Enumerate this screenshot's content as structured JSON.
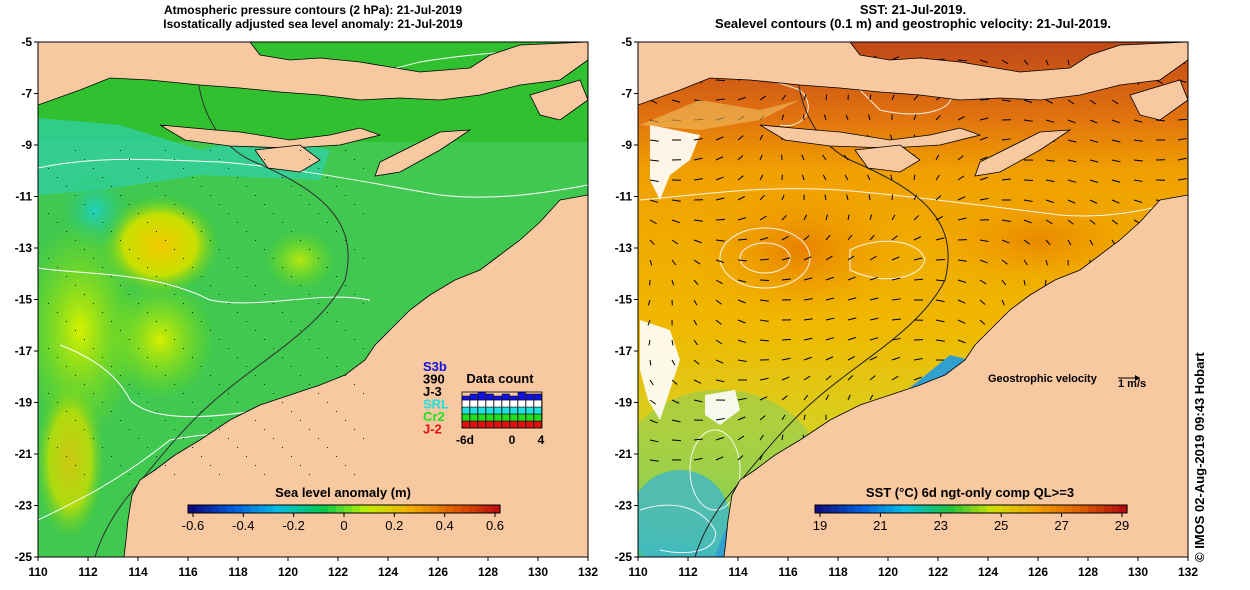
{
  "left_panel": {
    "title_line1": "Atmospheric pressure contours (2 hPa): 21-Jul-2019",
    "title_line2": "Isostatically adjusted sea level anomaly: 21-Jul-2019",
    "x_ticks": [
      "110",
      "112",
      "114",
      "116",
      "118",
      "120",
      "122",
      "124",
      "126",
      "128",
      "130",
      "132"
    ],
    "y_ticks": [
      "-5",
      "-7",
      "-9",
      "-11",
      "-13",
      "-15",
      "-17",
      "-19",
      "-21",
      "-23",
      "-25"
    ],
    "colorbar": {
      "label": "Sea level anomaly (m)",
      "ticks": [
        "-0.6",
        "-0.4",
        "-0.2",
        "0",
        "0.2",
        "0.4",
        "0.6"
      ],
      "colors": [
        "#0a0a80",
        "#0060e0",
        "#00c0e0",
        "#00c850",
        "#c0f000",
        "#f0b000",
        "#e06000",
        "#c01010"
      ]
    },
    "satellites": [
      {
        "name": "S3b",
        "color": "#1010e0"
      },
      {
        "name": "390",
        "color": "#000000"
      },
      {
        "name": "J-3",
        "color": "#000000"
      },
      {
        "name": "SRL",
        "color": "#20e0e0"
      },
      {
        "name": "Cr2",
        "color": "#20e020"
      },
      {
        "name": "J-2",
        "color": "#e01010"
      }
    ],
    "data_count": {
      "title": "Data count",
      "ticks": [
        "-6d",
        "0",
        "4"
      ]
    }
  },
  "right_panel": {
    "title_line1": "SST: 21-Jul-2019.",
    "title_line2": "Sealevel contours (0.1 m) and geostrophic velocity: 21-Jul-2019.",
    "x_ticks": [
      "110",
      "112",
      "114",
      "116",
      "118",
      "120",
      "122",
      "124",
      "126",
      "128",
      "130",
      "132"
    ],
    "y_ticks": [
      "-5",
      "-7",
      "-9",
      "-11",
      "-13",
      "-15",
      "-17",
      "-19",
      "-21",
      "-23",
      "-25"
    ],
    "colorbar": {
      "label": "SST (°C) 6d ngt-only comp QL>=3",
      "ticks": [
        "19",
        "21",
        "23",
        "25",
        "27",
        "29"
      ],
      "colors": [
        "#101080",
        "#0060e0",
        "#00c0e0",
        "#20c040",
        "#d0e000",
        "#f0a000",
        "#e06000",
        "#b01010"
      ]
    },
    "velocity_label": "Geostrophic velocity",
    "velocity_scale": "1 m/s"
  },
  "credit": "© IMOS 02-Aug-2019 09:43 Hobart",
  "colors": {
    "land": "#f8c8a0",
    "coast": "#000000",
    "contour": "#ffffff"
  }
}
